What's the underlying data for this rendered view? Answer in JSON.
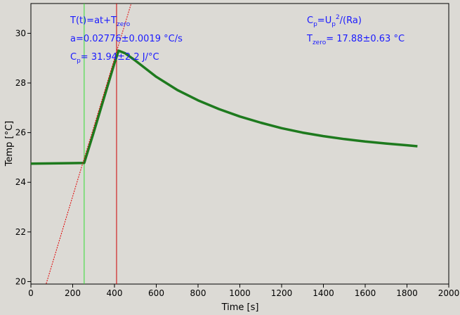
{
  "chart_data": {
    "type": "line",
    "xlabel": "Time [s]",
    "ylabel": "Temp [°C]",
    "xlim": [
      0,
      2000
    ],
    "ylim": [
      19.9,
      31.2
    ],
    "x_ticks": [
      0,
      200,
      400,
      600,
      800,
      1000,
      1200,
      1400,
      1600,
      1800,
      2000
    ],
    "y_ticks": [
      20,
      22,
      24,
      26,
      28,
      30
    ],
    "grid": false,
    "colors": {
      "plot_background": "#dcdad5",
      "data": "#1e7a1e",
      "fit": "#e00000",
      "start_marker": "#33dd33",
      "end_marker": "#cc0000",
      "annotation": "#1a1aff"
    },
    "series": [
      {
        "kind": "measured",
        "x": [
          0,
          100,
          200,
          255,
          300,
          350,
          400,
          420,
          450,
          500,
          600,
          700,
          800,
          900,
          1000,
          1100,
          1200,
          1300,
          1400,
          1500,
          1600,
          1700,
          1800,
          1850
        ],
        "y": [
          24.75,
          24.76,
          24.77,
          24.78,
          26.0,
          27.4,
          28.8,
          29.3,
          29.2,
          28.9,
          28.25,
          27.72,
          27.3,
          26.95,
          26.65,
          26.4,
          26.18,
          26.0,
          25.86,
          25.74,
          25.64,
          25.56,
          25.49,
          25.45
        ]
      },
      {
        "kind": "linear-fit",
        "x": [
          70,
          480
        ],
        "y": [
          19.82,
          31.2
        ]
      }
    ],
    "vertical_markers": [
      {
        "kind": "heating-start",
        "x": 255
      },
      {
        "kind": "heating-end",
        "x": 410
      }
    ],
    "annotations": {
      "formula": {
        "a": "T(t)=at+T",
        "b": "zero"
      },
      "slope": "a=0.02776±0.0019 °C/s",
      "cp_value": {
        "a": "C",
        "b": "p",
        "c": "= 31.94±2.2 J/°C"
      },
      "cp_formula": {
        "a": "C",
        "b": "p",
        "c": "=U",
        "d": "p",
        "e": "2",
        "f": "/(Ra)"
      },
      "tzero": {
        "a": "T",
        "b": "zero",
        "c": "= 17.88±0.63 °C"
      }
    }
  }
}
